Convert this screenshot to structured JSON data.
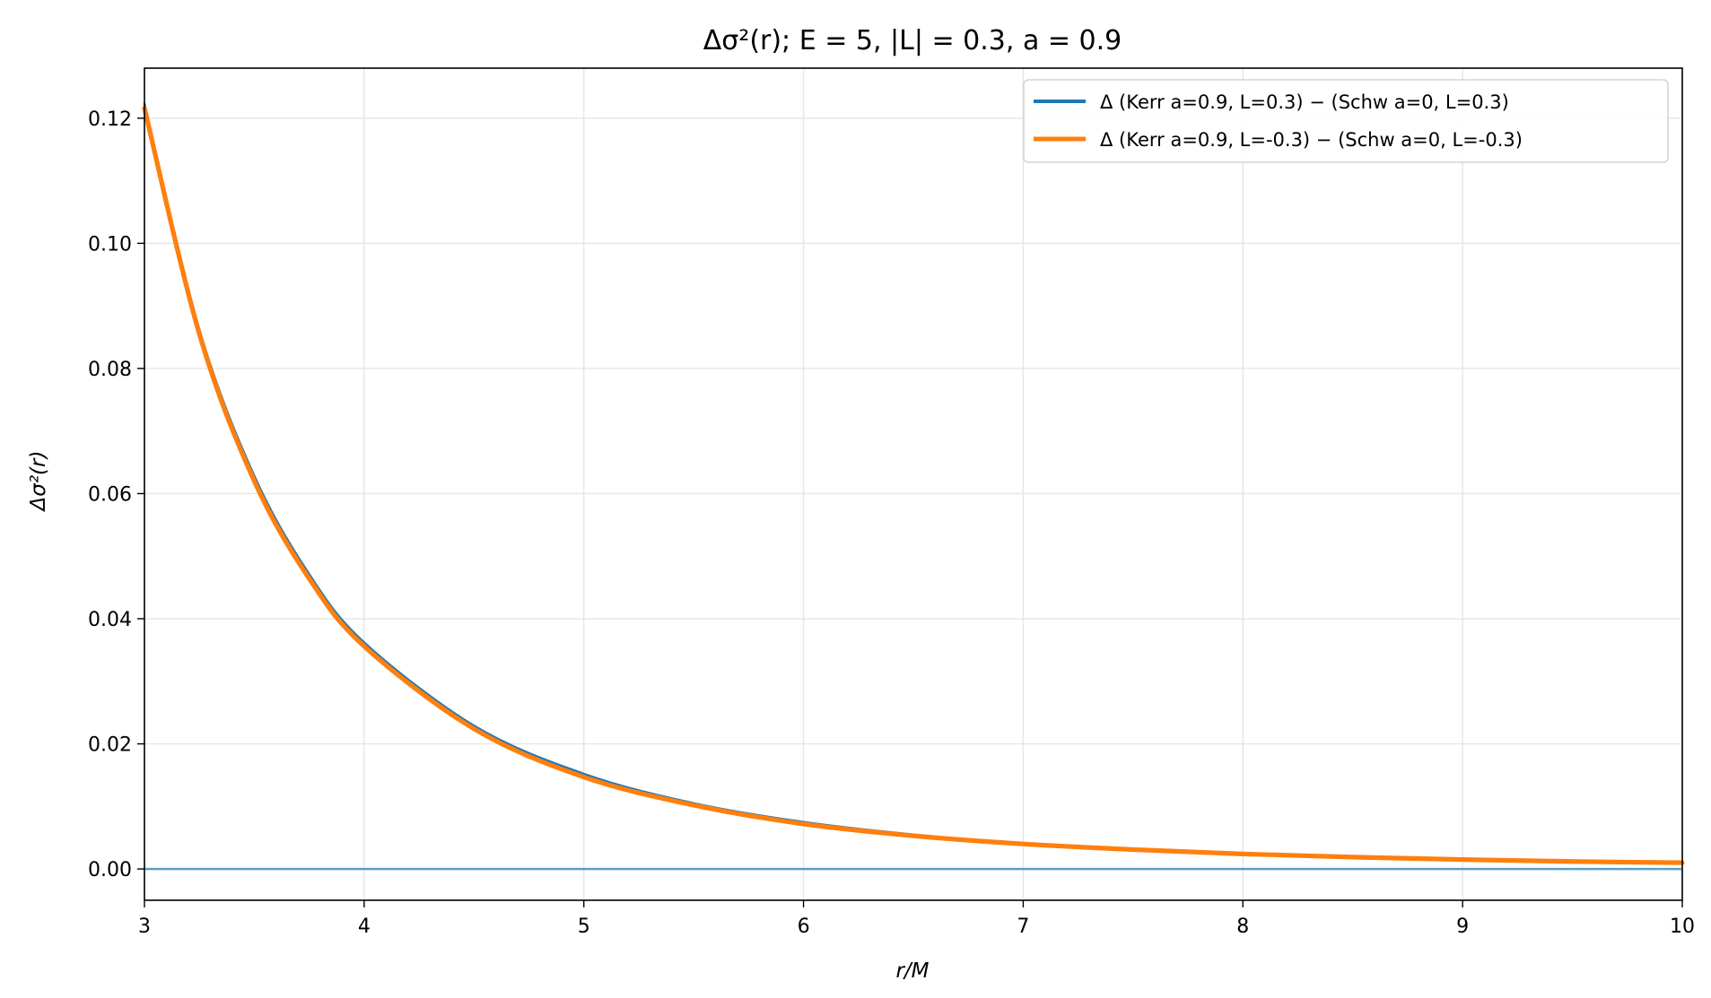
{
  "chart_data": {
    "type": "line",
    "title": "Δσ²(r);  E = 5,  |L| = 0.3,  a = 0.9",
    "xlabel": "r/M",
    "ylabel": "Δσ²(r)",
    "xlim": [
      3,
      10
    ],
    "ylim": [
      -0.005,
      0.128
    ],
    "xticks": [
      3,
      4,
      5,
      6,
      7,
      8,
      9,
      10
    ],
    "xtick_labels": [
      "3",
      "4",
      "5",
      "6",
      "7",
      "8",
      "9",
      "10"
    ],
    "yticks": [
      0.0,
      0.02,
      0.04,
      0.06,
      0.08,
      0.1,
      0.12
    ],
    "ytick_labels": [
      "0.00",
      "0.02",
      "0.04",
      "0.06",
      "0.08",
      "0.10",
      "0.12"
    ],
    "grid": true,
    "legend_position": "top-right",
    "reference_line": {
      "y": 0,
      "color": "#5a9fc4"
    },
    "series": [
      {
        "name": "Δ (Kerr a=0.9, L=0.3) − (Schw a=0, L=0.3)",
        "color": "#1f77b4",
        "x": [
          3.0,
          3.25,
          3.5,
          3.75,
          4.0,
          4.5,
          5.0,
          5.5,
          6.0,
          6.5,
          7.0,
          7.5,
          8.0,
          8.5,
          9.0,
          9.5,
          10.0
        ],
        "y": [
          0.1223,
          0.0862,
          0.0628,
          0.0471,
          0.0362,
          0.0229,
          0.0152,
          0.0105,
          0.0075,
          0.0055,
          0.0041,
          0.0032,
          0.0025,
          0.002,
          0.0016,
          0.0013,
          0.001
        ]
      },
      {
        "name": "Δ (Kerr a=0.9, L=-0.3) − (Schw a=0, L=-0.3)",
        "color": "#ff7f0e",
        "x": [
          3.0,
          3.25,
          3.5,
          3.75,
          4.0,
          4.5,
          5.0,
          5.5,
          6.0,
          6.5,
          7.0,
          7.5,
          8.0,
          8.5,
          9.0,
          9.5,
          10.0
        ],
        "y": [
          0.1216,
          0.0855,
          0.062,
          0.0464,
          0.0356,
          0.0224,
          0.0147,
          0.0102,
          0.0072,
          0.0053,
          0.004,
          0.0031,
          0.0024,
          0.0019,
          0.0015,
          0.0012,
          0.001
        ]
      }
    ]
  }
}
